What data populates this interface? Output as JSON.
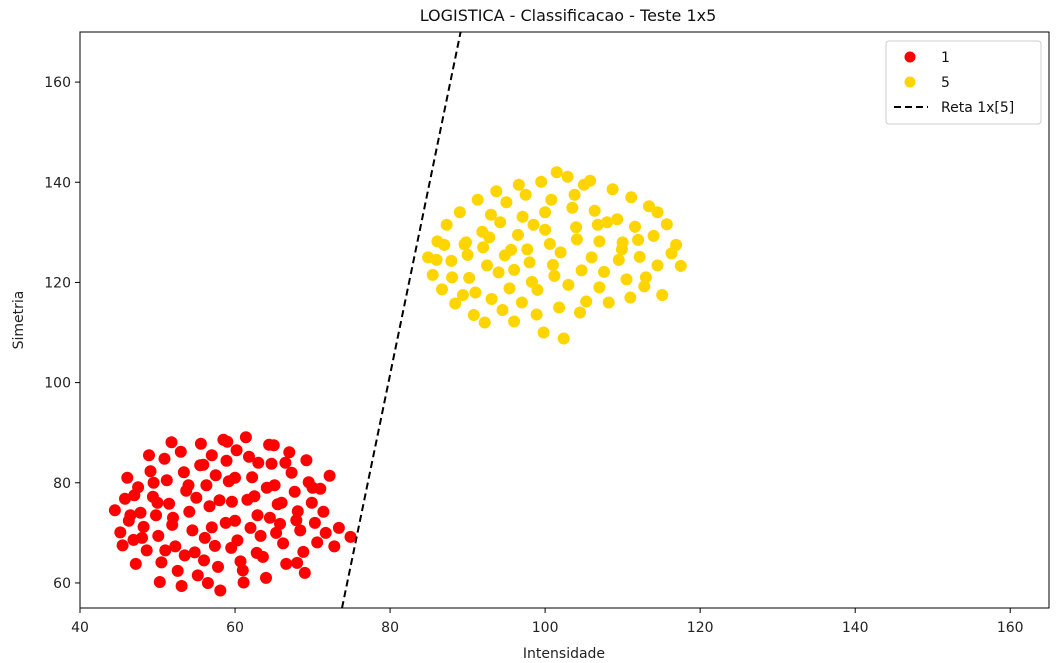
{
  "chart_data": {
    "type": "scatter",
    "title": "LOGISTICA - Classificacao - Teste 1x5",
    "xlabel": "Intensidade",
    "ylabel": "Simetria",
    "xlim": [
      40,
      165
    ],
    "ylim": [
      55,
      170
    ],
    "xticks": [
      40,
      60,
      80,
      100,
      120,
      140,
      160
    ],
    "yticks": [
      60,
      80,
      100,
      120,
      140,
      160
    ],
    "grid": false,
    "legend_position": "top-right",
    "series": [
      {
        "name": "1",
        "color": "#ff0000",
        "points": [
          [
            44.5,
            74.5
          ],
          [
            45.2,
            70.1
          ],
          [
            45.8,
            76.8
          ],
          [
            46.3,
            72.4
          ],
          [
            46.9,
            68.6
          ],
          [
            47.5,
            79.1
          ],
          [
            47.8,
            74.0
          ],
          [
            48.2,
            71.2
          ],
          [
            48.6,
            66.5
          ],
          [
            49.1,
            82.3
          ],
          [
            49.4,
            77.2
          ],
          [
            49.8,
            73.5
          ],
          [
            50.1,
            69.4
          ],
          [
            50.5,
            64.1
          ],
          [
            50.9,
            84.8
          ],
          [
            51.2,
            80.5
          ],
          [
            51.5,
            75.8
          ],
          [
            51.9,
            71.6
          ],
          [
            52.3,
            67.3
          ],
          [
            52.6,
            62.4
          ],
          [
            53.0,
            86.2
          ],
          [
            53.4,
            82.1
          ],
          [
            53.7,
            78.4
          ],
          [
            54.1,
            74.2
          ],
          [
            54.5,
            70.5
          ],
          [
            54.8,
            66.1
          ],
          [
            55.2,
            61.5
          ],
          [
            55.6,
            87.8
          ],
          [
            55.9,
            83.6
          ],
          [
            56.3,
            79.5
          ],
          [
            56.7,
            75.3
          ],
          [
            57.0,
            71.1
          ],
          [
            57.4,
            67.4
          ],
          [
            57.8,
            63.2
          ],
          [
            58.1,
            58.5
          ],
          [
            58.5,
            88.6
          ],
          [
            58.9,
            84.4
          ],
          [
            59.2,
            80.3
          ],
          [
            59.6,
            76.2
          ],
          [
            60.0,
            72.4
          ],
          [
            60.3,
            68.5
          ],
          [
            60.7,
            64.3
          ],
          [
            61.1,
            60.1
          ],
          [
            61.4,
            89.1
          ],
          [
            61.8,
            85.2
          ],
          [
            62.2,
            81.1
          ],
          [
            62.5,
            77.3
          ],
          [
            62.9,
            73.5
          ],
          [
            63.3,
            69.4
          ],
          [
            63.6,
            65.2
          ],
          [
            64.0,
            61.0
          ],
          [
            64.4,
            87.6
          ],
          [
            64.7,
            83.8
          ],
          [
            65.1,
            79.5
          ],
          [
            65.5,
            75.7
          ],
          [
            65.8,
            71.8
          ],
          [
            66.2,
            67.9
          ],
          [
            66.6,
            63.8
          ],
          [
            67.0,
            86.1
          ],
          [
            67.3,
            82.0
          ],
          [
            67.7,
            78.2
          ],
          [
            68.1,
            74.3
          ],
          [
            68.4,
            70.5
          ],
          [
            68.8,
            66.2
          ],
          [
            69.2,
            84.5
          ],
          [
            69.5,
            80.1
          ],
          [
            69.9,
            76.0
          ],
          [
            70.3,
            72.0
          ],
          [
            70.6,
            68.1
          ],
          [
            71.0,
            78.8
          ],
          [
            71.4,
            74.2
          ],
          [
            71.7,
            70.0
          ],
          [
            72.2,
            81.4
          ],
          [
            72.8,
            67.3
          ],
          [
            73.4,
            71.0
          ],
          [
            74.9,
            69.2
          ],
          [
            46.1,
            81.0
          ],
          [
            47.2,
            63.8
          ],
          [
            48.9,
            85.5
          ],
          [
            50.3,
            60.2
          ],
          [
            51.8,
            88.1
          ],
          [
            53.1,
            59.4
          ],
          [
            55.0,
            77.0
          ],
          [
            56.1,
            69.0
          ],
          [
            57.5,
            81.5
          ],
          [
            58.8,
            72.0
          ],
          [
            60.2,
            86.5
          ],
          [
            61.6,
            76.6
          ],
          [
            62.8,
            66.0
          ],
          [
            64.1,
            79.0
          ],
          [
            65.3,
            70.0
          ],
          [
            66.5,
            84.0
          ],
          [
            67.9,
            72.5
          ],
          [
            69.0,
            62.0
          ],
          [
            52.0,
            73.0
          ],
          [
            54.0,
            79.5
          ],
          [
            56.0,
            64.5
          ],
          [
            58.0,
            76.5
          ],
          [
            60.0,
            81.0
          ],
          [
            62.0,
            71.0
          ],
          [
            50.0,
            76.0
          ],
          [
            48.0,
            69.0
          ],
          [
            46.5,
            73.5
          ],
          [
            53.5,
            65.5
          ],
          [
            55.5,
            83.5
          ],
          [
            57.0,
            85.5
          ],
          [
            59.5,
            67.0
          ],
          [
            61.0,
            62.5
          ],
          [
            63.0,
            84.0
          ],
          [
            64.5,
            73.0
          ],
          [
            66.0,
            76.0
          ],
          [
            68.0,
            64.0
          ],
          [
            70.0,
            79.0
          ],
          [
            65.0,
            87.5
          ],
          [
            59.0,
            88.2
          ],
          [
            56.5,
            60.0
          ],
          [
            51.0,
            66.5
          ],
          [
            49.5,
            80.0
          ],
          [
            47.0,
            77.5
          ],
          [
            45.5,
            67.5
          ]
        ]
      },
      {
        "name": "5",
        "color": "#ffd500",
        "points": [
          [
            84.9,
            125.0
          ],
          [
            85.5,
            121.5
          ],
          [
            86.1,
            128.2
          ],
          [
            86.7,
            118.6
          ],
          [
            87.3,
            131.5
          ],
          [
            87.9,
            124.3
          ],
          [
            88.4,
            115.8
          ],
          [
            89.0,
            134.0
          ],
          [
            89.6,
            127.6
          ],
          [
            90.2,
            120.9
          ],
          [
            90.8,
            113.5
          ],
          [
            91.3,
            136.5
          ],
          [
            91.9,
            130.1
          ],
          [
            92.5,
            123.4
          ],
          [
            93.1,
            116.7
          ],
          [
            93.7,
            138.2
          ],
          [
            94.2,
            132.0
          ],
          [
            94.8,
            125.4
          ],
          [
            95.4,
            118.8
          ],
          [
            96.0,
            112.2
          ],
          [
            96.6,
            139.5
          ],
          [
            97.1,
            133.1
          ],
          [
            97.7,
            126.6
          ],
          [
            98.3,
            120.1
          ],
          [
            98.9,
            113.6
          ],
          [
            99.5,
            140.1
          ],
          [
            100.0,
            134.0
          ],
          [
            100.6,
            127.7
          ],
          [
            101.2,
            121.3
          ],
          [
            101.8,
            115.0
          ],
          [
            102.4,
            108.8
          ],
          [
            102.9,
            141.1
          ],
          [
            103.5,
            134.9
          ],
          [
            104.1,
            128.6
          ],
          [
            104.7,
            122.4
          ],
          [
            105.3,
            116.2
          ],
          [
            105.8,
            140.3
          ],
          [
            106.4,
            134.3
          ],
          [
            107.0,
            128.2
          ],
          [
            107.6,
            122.1
          ],
          [
            108.2,
            116.0
          ],
          [
            108.7,
            138.6
          ],
          [
            109.3,
            132.6
          ],
          [
            109.9,
            126.6
          ],
          [
            110.5,
            120.6
          ],
          [
            111.1,
            137.0
          ],
          [
            111.6,
            131.1
          ],
          [
            112.2,
            125.1
          ],
          [
            112.8,
            119.2
          ],
          [
            113.4,
            135.2
          ],
          [
            114.0,
            129.3
          ],
          [
            114.5,
            123.4
          ],
          [
            115.1,
            117.5
          ],
          [
            115.7,
            131.6
          ],
          [
            116.3,
            125.8
          ],
          [
            116.9,
            127.5
          ],
          [
            117.5,
            123.3
          ],
          [
            89.8,
            128.0
          ],
          [
            92.0,
            127.0
          ],
          [
            94.0,
            122.0
          ],
          [
            96.5,
            129.5
          ],
          [
            98.0,
            124.0
          ],
          [
            100.0,
            130.5
          ],
          [
            102.0,
            126.0
          ],
          [
            104.0,
            131.0
          ],
          [
            106.0,
            125.0
          ],
          [
            108.0,
            132.0
          ],
          [
            110.0,
            128.0
          ],
          [
            93.0,
            133.5
          ],
          [
            95.0,
            136.0
          ],
          [
            97.5,
            137.5
          ],
          [
            99.0,
            118.5
          ],
          [
            101.0,
            123.5
          ],
          [
            103.0,
            119.5
          ],
          [
            91.0,
            118.0
          ],
          [
            88.0,
            121.0
          ],
          [
            86.0,
            124.5
          ],
          [
            90.0,
            125.5
          ],
          [
            92.8,
            129.0
          ],
          [
            95.6,
            126.5
          ],
          [
            98.5,
            131.5
          ],
          [
            100.8,
            136.5
          ],
          [
            103.8,
            137.5
          ],
          [
            106.8,
            131.5
          ],
          [
            109.5,
            124.5
          ],
          [
            112.0,
            128.5
          ],
          [
            114.5,
            134.0
          ],
          [
            113.0,
            121.0
          ],
          [
            111.0,
            117.0
          ],
          [
            107.0,
            119.0
          ],
          [
            104.5,
            114.0
          ],
          [
            99.8,
            110.0
          ],
          [
            97.0,
            116.0
          ],
          [
            94.5,
            114.5
          ],
          [
            92.2,
            112.0
          ],
          [
            89.4,
            117.5
          ],
          [
            87.0,
            127.5
          ],
          [
            96.0,
            122.5
          ],
          [
            105.0,
            139.5
          ],
          [
            101.5,
            142.0
          ]
        ]
      }
    ],
    "decision_line": {
      "name": "Reta 1x[5]",
      "style": "dashed",
      "color": "#000000",
      "p1": [
        73.8,
        55
      ],
      "p2": [
        89.1,
        170
      ]
    }
  }
}
